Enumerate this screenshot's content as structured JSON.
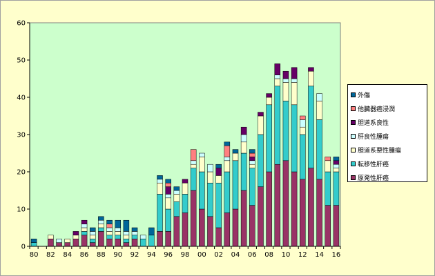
{
  "chart_data": {
    "type": "bar",
    "stacked": true,
    "categories": [
      "80",
      "81",
      "82",
      "83",
      "84",
      "85",
      "86",
      "87",
      "88",
      "89",
      "90",
      "91",
      "92",
      "93",
      "94",
      "95",
      "96",
      "97",
      "98",
      "99",
      "00",
      "01",
      "02",
      "03",
      "04",
      "05",
      "06",
      "07",
      "08",
      "09",
      "10",
      "11",
      "12",
      "13",
      "14",
      "15",
      "16"
    ],
    "xtick_labels": [
      "80",
      "82",
      "84",
      "86",
      "88",
      "90",
      "92",
      "94",
      "96",
      "98",
      "00",
      "02",
      "04",
      "06",
      "08",
      "10",
      "12",
      "14",
      "16"
    ],
    "ylim": [
      0,
      60
    ],
    "yticks": [
      0,
      10,
      20,
      30,
      40,
      50,
      60
    ],
    "legend_position": "right",
    "grid": false,
    "series": [
      {
        "name": "原発性肝癌",
        "color": "#993366",
        "values": [
          0,
          0,
          2,
          1,
          1,
          2,
          3,
          1,
          4,
          2,
          2,
          1,
          2,
          0,
          0,
          4,
          4,
          8,
          9,
          15,
          10,
          8,
          5,
          9,
          10,
          15,
          11,
          16,
          20,
          22,
          23,
          20,
          18,
          21,
          18,
          11,
          11
        ]
      },
      {
        "name": "転移性肝癌",
        "color": "#33cccc",
        "values": [
          1,
          0,
          0,
          0,
          0,
          0,
          1,
          1,
          1,
          1,
          1,
          1,
          1,
          2,
          3,
          10,
          6,
          4,
          5,
          6,
          10,
          9,
          12,
          11,
          13,
          10,
          10,
          14,
          18,
          21,
          16,
          18,
          12,
          22,
          16,
          9,
          9
        ]
      },
      {
        "name": "胆道系悪性腫瘍",
        "color": "#ffffcc",
        "values": [
          0,
          0,
          1,
          0,
          1,
          1,
          1,
          1,
          1,
          1,
          1,
          1,
          0,
          0,
          0,
          3,
          3,
          2,
          3,
          1,
          4,
          3,
          2,
          3,
          2,
          3,
          1,
          5,
          2,
          2,
          5,
          6,
          2,
          4,
          5,
          3,
          1
        ]
      },
      {
        "name": "肝良性腫瘍",
        "color": "#ccffff",
        "values": [
          0,
          0,
          0,
          1,
          0,
          0,
          1,
          1,
          1,
          1,
          1,
          1,
          1,
          1,
          0,
          1,
          1,
          1,
          0,
          1,
          1,
          2,
          0,
          1,
          0,
          2,
          1,
          0,
          0,
          1,
          1,
          1,
          2,
          0,
          2,
          0,
          1
        ]
      },
      {
        "name": "胆道系良性",
        "color": "#660066",
        "values": [
          0,
          0,
          0,
          0,
          0,
          1,
          1,
          0,
          0,
          0,
          0,
          0,
          0,
          0,
          0,
          0,
          2,
          0,
          1,
          0,
          0,
          0,
          2,
          0,
          0,
          2,
          1,
          1,
          1,
          3,
          2,
          3,
          0,
          1,
          0,
          0,
          1
        ]
      },
      {
        "name": "他臓器癌浸潤",
        "color": "#ff8080",
        "values": [
          0,
          0,
          0,
          0,
          0,
          0,
          0,
          0,
          0,
          1,
          0,
          0,
          0,
          0,
          0,
          0,
          1,
          0,
          0,
          3,
          0,
          0,
          0,
          3,
          0,
          0,
          1,
          0,
          0,
          0,
          0,
          0,
          1,
          0,
          0,
          1,
          0
        ]
      },
      {
        "name": "外傷",
        "color": "#006699",
        "values": [
          1,
          0,
          0,
          0,
          0,
          0,
          0,
          1,
          1,
          1,
          2,
          3,
          1,
          0,
          2,
          1,
          1,
          1,
          0,
          0,
          0,
          0,
          1,
          1,
          1,
          0,
          1,
          0,
          0,
          0,
          0,
          0,
          0,
          0,
          0,
          0,
          1
        ]
      }
    ]
  }
}
